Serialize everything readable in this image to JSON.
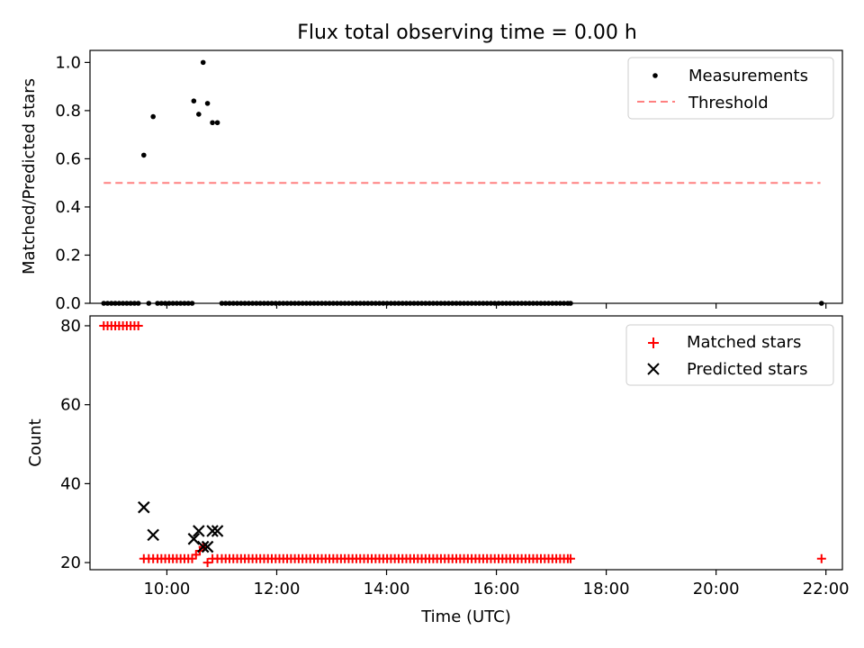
{
  "figure": {
    "title": "Flux total observing time = 0.00 h"
  },
  "chart_data": [
    {
      "type": "scatter",
      "panel": "top",
      "title": "Flux total observing time = 0.00 h",
      "xlabel": "",
      "ylabel": "Matched/Predicted stars",
      "x_unit": "hours (UTC)",
      "xlim": [
        8.6,
        22.3
      ],
      "ylim": [
        0.0,
        1.05
      ],
      "yticks": [
        0.0,
        0.2,
        0.4,
        0.6,
        0.8,
        1.0
      ],
      "ytick_labels": [
        "0.0",
        "0.2",
        "0.4",
        "0.6",
        "0.8",
        "1.0"
      ],
      "xticks": [
        10,
        12,
        14,
        16,
        18,
        20,
        22
      ],
      "xtick_labels": [],
      "grid": false,
      "legend": {
        "placement": "top-right"
      },
      "series": [
        {
          "name": "Measurements",
          "kind": "points",
          "color": "#000000",
          "points": [
            [
              8.85,
              0
            ],
            [
              8.92,
              0
            ],
            [
              8.99,
              0
            ],
            [
              9.06,
              0
            ],
            [
              9.13,
              0
            ],
            [
              9.2,
              0
            ],
            [
              9.27,
              0
            ],
            [
              9.34,
              0
            ],
            [
              9.41,
              0
            ],
            [
              9.48,
              0
            ],
            [
              9.58,
              0.615
            ],
            [
              9.67,
              0
            ],
            [
              9.75,
              0.775
            ],
            [
              9.83,
              0
            ],
            [
              9.9,
              0
            ],
            [
              9.97,
              0
            ],
            [
              10.04,
              0
            ],
            [
              10.11,
              0
            ],
            [
              10.18,
              0
            ],
            [
              10.25,
              0
            ],
            [
              10.32,
              0
            ],
            [
              10.39,
              0
            ],
            [
              10.46,
              0
            ],
            [
              10.49,
              0.84
            ],
            [
              10.58,
              0.785
            ],
            [
              10.66,
              1.0
            ],
            [
              10.74,
              0.83
            ],
            [
              10.83,
              0.75
            ],
            [
              10.92,
              0.75
            ],
            [
              11.0,
              0
            ],
            [
              11.07,
              0
            ],
            [
              11.14,
              0
            ],
            [
              11.21,
              0
            ],
            [
              11.28,
              0
            ],
            [
              11.35,
              0
            ],
            [
              11.42,
              0
            ],
            [
              11.49,
              0
            ],
            [
              11.56,
              0
            ],
            [
              11.63,
              0
            ],
            [
              11.7,
              0
            ],
            [
              11.77,
              0
            ],
            [
              11.84,
              0
            ],
            [
              11.91,
              0
            ],
            [
              11.98,
              0
            ],
            [
              12.05,
              0
            ],
            [
              12.12,
              0
            ],
            [
              12.19,
              0
            ],
            [
              12.26,
              0
            ],
            [
              12.33,
              0
            ],
            [
              12.4,
              0
            ],
            [
              12.47,
              0
            ],
            [
              12.54,
              0
            ],
            [
              12.61,
              0
            ],
            [
              12.68,
              0
            ],
            [
              12.75,
              0
            ],
            [
              12.82,
              0
            ],
            [
              12.89,
              0
            ],
            [
              12.96,
              0
            ],
            [
              13.03,
              0
            ],
            [
              13.1,
              0
            ],
            [
              13.17,
              0
            ],
            [
              13.24,
              0
            ],
            [
              13.31,
              0
            ],
            [
              13.38,
              0
            ],
            [
              13.45,
              0
            ],
            [
              13.52,
              0
            ],
            [
              13.59,
              0
            ],
            [
              13.66,
              0
            ],
            [
              13.73,
              0
            ],
            [
              13.8,
              0
            ],
            [
              13.87,
              0
            ],
            [
              13.94,
              0
            ],
            [
              14.01,
              0
            ],
            [
              14.08,
              0
            ],
            [
              14.15,
              0
            ],
            [
              14.22,
              0
            ],
            [
              14.29,
              0
            ],
            [
              14.36,
              0
            ],
            [
              14.43,
              0
            ],
            [
              14.5,
              0
            ],
            [
              14.57,
              0
            ],
            [
              14.64,
              0
            ],
            [
              14.71,
              0
            ],
            [
              14.78,
              0
            ],
            [
              14.85,
              0
            ],
            [
              14.92,
              0
            ],
            [
              14.99,
              0
            ],
            [
              15.06,
              0
            ],
            [
              15.13,
              0
            ],
            [
              15.2,
              0
            ],
            [
              15.27,
              0
            ],
            [
              15.34,
              0
            ],
            [
              15.41,
              0
            ],
            [
              15.48,
              0
            ],
            [
              15.55,
              0
            ],
            [
              15.62,
              0
            ],
            [
              15.69,
              0
            ],
            [
              15.76,
              0
            ],
            [
              15.83,
              0
            ],
            [
              15.9,
              0
            ],
            [
              15.97,
              0
            ],
            [
              16.04,
              0
            ],
            [
              16.11,
              0
            ],
            [
              16.18,
              0
            ],
            [
              16.25,
              0
            ],
            [
              16.32,
              0
            ],
            [
              16.39,
              0
            ],
            [
              16.46,
              0
            ],
            [
              16.53,
              0
            ],
            [
              16.6,
              0
            ],
            [
              16.67,
              0
            ],
            [
              16.74,
              0
            ],
            [
              16.81,
              0
            ],
            [
              16.88,
              0
            ],
            [
              16.95,
              0
            ],
            [
              17.02,
              0
            ],
            [
              17.09,
              0
            ],
            [
              17.16,
              0
            ],
            [
              17.23,
              0
            ],
            [
              17.3,
              0
            ],
            [
              17.35,
              0
            ],
            [
              21.92,
              0
            ]
          ]
        },
        {
          "name": "Threshold",
          "kind": "dashed-line",
          "color": "#ff8080",
          "points": [
            [
              8.85,
              0.5
            ],
            [
              21.9,
              0.5
            ]
          ]
        }
      ]
    },
    {
      "type": "scatter",
      "panel": "bottom",
      "xlabel": "Time (UTC)",
      "ylabel": "Count",
      "x_unit": "hours (UTC)",
      "xlim": [
        8.6,
        22.3
      ],
      "ylim": [
        18.2,
        82.5
      ],
      "yticks": [
        20,
        40,
        60,
        80
      ],
      "ytick_labels": [
        "20",
        "40",
        "60",
        "80"
      ],
      "xticks": [
        10,
        12,
        14,
        16,
        18,
        20,
        22
      ],
      "xtick_labels": [
        "10:00",
        "12:00",
        "14:00",
        "16:00",
        "18:00",
        "20:00",
        "22:00"
      ],
      "grid": false,
      "legend": {
        "placement": "top-right"
      },
      "series": [
        {
          "name": "Matched stars",
          "kind": "plus",
          "color": "#ff0000",
          "points": [
            [
              8.85,
              80
            ],
            [
              8.92,
              80
            ],
            [
              8.99,
              80
            ],
            [
              9.06,
              80
            ],
            [
              9.13,
              80
            ],
            [
              9.2,
              80
            ],
            [
              9.27,
              80
            ],
            [
              9.34,
              80
            ],
            [
              9.41,
              80
            ],
            [
              9.48,
              80
            ],
            [
              9.58,
              21
            ],
            [
              9.67,
              21
            ],
            [
              9.75,
              21
            ],
            [
              9.83,
              21
            ],
            [
              9.9,
              21
            ],
            [
              9.97,
              21
            ],
            [
              10.04,
              21
            ],
            [
              10.11,
              21
            ],
            [
              10.18,
              21
            ],
            [
              10.25,
              21
            ],
            [
              10.32,
              21
            ],
            [
              10.39,
              21
            ],
            [
              10.46,
              21
            ],
            [
              10.53,
              22
            ],
            [
              10.6,
              23
            ],
            [
              10.66,
              24
            ],
            [
              10.74,
              20
            ],
            [
              10.83,
              21
            ],
            [
              10.92,
              21
            ],
            [
              11.0,
              21
            ],
            [
              11.07,
              21
            ],
            [
              11.14,
              21
            ],
            [
              11.21,
              21
            ],
            [
              11.28,
              21
            ],
            [
              11.35,
              21
            ],
            [
              11.42,
              21
            ],
            [
              11.49,
              21
            ],
            [
              11.56,
              21
            ],
            [
              11.63,
              21
            ],
            [
              11.7,
              21
            ],
            [
              11.77,
              21
            ],
            [
              11.84,
              21
            ],
            [
              11.91,
              21
            ],
            [
              11.98,
              21
            ],
            [
              12.05,
              21
            ],
            [
              12.12,
              21
            ],
            [
              12.19,
              21
            ],
            [
              12.26,
              21
            ],
            [
              12.33,
              21
            ],
            [
              12.4,
              21
            ],
            [
              12.47,
              21
            ],
            [
              12.54,
              21
            ],
            [
              12.61,
              21
            ],
            [
              12.68,
              21
            ],
            [
              12.75,
              21
            ],
            [
              12.82,
              21
            ],
            [
              12.89,
              21
            ],
            [
              12.96,
              21
            ],
            [
              13.03,
              21
            ],
            [
              13.1,
              21
            ],
            [
              13.17,
              21
            ],
            [
              13.24,
              21
            ],
            [
              13.31,
              21
            ],
            [
              13.38,
              21
            ],
            [
              13.45,
              21
            ],
            [
              13.52,
              21
            ],
            [
              13.59,
              21
            ],
            [
              13.66,
              21
            ],
            [
              13.73,
              21
            ],
            [
              13.8,
              21
            ],
            [
              13.87,
              21
            ],
            [
              13.94,
              21
            ],
            [
              14.01,
              21
            ],
            [
              14.08,
              21
            ],
            [
              14.15,
              21
            ],
            [
              14.22,
              21
            ],
            [
              14.29,
              21
            ],
            [
              14.36,
              21
            ],
            [
              14.43,
              21
            ],
            [
              14.5,
              21
            ],
            [
              14.57,
              21
            ],
            [
              14.64,
              21
            ],
            [
              14.71,
              21
            ],
            [
              14.78,
              21
            ],
            [
              14.85,
              21
            ],
            [
              14.92,
              21
            ],
            [
              14.99,
              21
            ],
            [
              15.06,
              21
            ],
            [
              15.13,
              21
            ],
            [
              15.2,
              21
            ],
            [
              15.27,
              21
            ],
            [
              15.34,
              21
            ],
            [
              15.41,
              21
            ],
            [
              15.48,
              21
            ],
            [
              15.55,
              21
            ],
            [
              15.62,
              21
            ],
            [
              15.69,
              21
            ],
            [
              15.76,
              21
            ],
            [
              15.83,
              21
            ],
            [
              15.9,
              21
            ],
            [
              15.97,
              21
            ],
            [
              16.04,
              21
            ],
            [
              16.11,
              21
            ],
            [
              16.18,
              21
            ],
            [
              16.25,
              21
            ],
            [
              16.32,
              21
            ],
            [
              16.39,
              21
            ],
            [
              16.46,
              21
            ],
            [
              16.53,
              21
            ],
            [
              16.6,
              21
            ],
            [
              16.67,
              21
            ],
            [
              16.74,
              21
            ],
            [
              16.81,
              21
            ],
            [
              16.88,
              21
            ],
            [
              16.95,
              21
            ],
            [
              17.02,
              21
            ],
            [
              17.09,
              21
            ],
            [
              17.16,
              21
            ],
            [
              17.23,
              21
            ],
            [
              17.3,
              21
            ],
            [
              17.35,
              21
            ],
            [
              21.92,
              21
            ]
          ]
        },
        {
          "name": "Predicted stars",
          "kind": "x",
          "color": "#000000",
          "points": [
            [
              9.58,
              34
            ],
            [
              9.75,
              27
            ],
            [
              10.49,
              26
            ],
            [
              10.58,
              28
            ],
            [
              10.66,
              24
            ],
            [
              10.74,
              24
            ],
            [
              10.83,
              28
            ],
            [
              10.92,
              28
            ]
          ]
        }
      ]
    }
  ]
}
